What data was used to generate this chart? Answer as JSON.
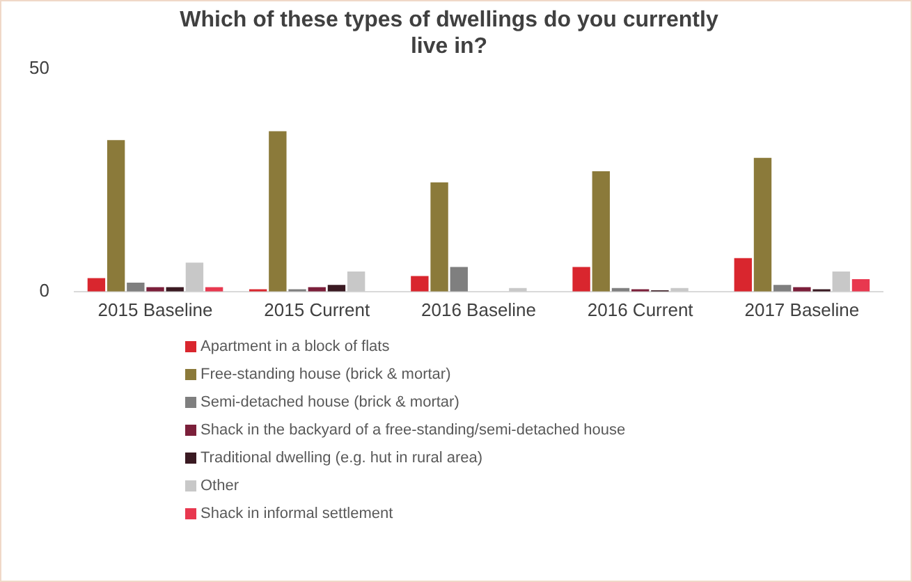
{
  "chart_data": {
    "type": "bar",
    "title": "Which of these types of dwellings do you currently live in?",
    "categories": [
      "2015 Baseline",
      "2015 Current",
      "2016 Baseline",
      "2016 Current",
      "2017 Baseline"
    ],
    "series": [
      {
        "name": "Apartment in a block of flats",
        "color": "#d9262e",
        "values": [
          3,
          0.5,
          3.5,
          5.5,
          7.5
        ]
      },
      {
        "name": "Free-standing house (brick & mortar)",
        "color": "#8b7a3a",
        "values": [
          34,
          36,
          24.5,
          27,
          30
        ]
      },
      {
        "name": "Semi-detached house (brick & mortar)",
        "color": "#7f7f7f",
        "values": [
          2,
          0.5,
          5.5,
          0.8,
          1.5
        ]
      },
      {
        "name": "Shack in the backyard of a free-standing/semi-detached house",
        "color": "#7b1f3a",
        "values": [
          1,
          1,
          0,
          0.5,
          1
        ]
      },
      {
        "name": "Traditional dwelling (e.g. hut in rural area)",
        "color": "#3a1a22",
        "values": [
          1,
          1.5,
          0,
          0.3,
          0.5
        ]
      },
      {
        "name": "Other",
        "color": "#c8c8c8",
        "values": [
          6.5,
          4.5,
          0.8,
          0.8,
          4.5
        ]
      },
      {
        "name": "Shack in informal settlement",
        "color": "#e8384f",
        "values": [
          1,
          0,
          0,
          0,
          2.8
        ]
      }
    ],
    "ylim": [
      0,
      50
    ],
    "yticks": [
      0,
      50
    ],
    "grid": false,
    "legend": "bottom"
  }
}
